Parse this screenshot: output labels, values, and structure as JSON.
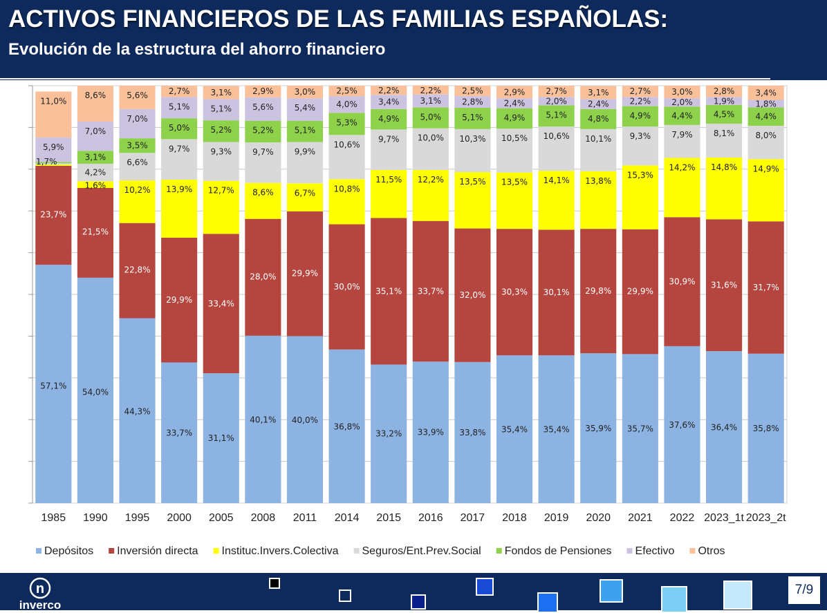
{
  "header": {
    "title": "ACTIVOS FINANCIEROS DE LAS FAMILIAS ESPAÑOLAS:",
    "subtitle": "Evolución de la estructura del ahorro financiero"
  },
  "footer": {
    "logo_text": "inverco",
    "page": "7/9"
  },
  "colors": {
    "header_bg": "#0e2a5c",
    "depositos": "#8db3e2",
    "inversion_directa": "#b5453f",
    "instituc": "#ffff00",
    "seguros": "#d9d9d9",
    "fondos": "#8ed14a",
    "efectivo": "#cbc3df",
    "otros": "#f9c09a"
  },
  "chart_data": {
    "type": "bar",
    "stacked": true,
    "normalized_percent": true,
    "title": "",
    "xlabel": "",
    "ylabel": "",
    "ylim": [
      0,
      100
    ],
    "grid": true,
    "legend_position": "bottom",
    "categories": [
      "1985",
      "1990",
      "1995",
      "2000",
      "2005",
      "2008",
      "2011",
      "2014",
      "2015",
      "2016",
      "2017",
      "2018",
      "2019",
      "2020",
      "2021",
      "2022",
      "2023_1t",
      "2023_2t"
    ],
    "series": [
      {
        "name": "Depósitos",
        "color": "#8db3e2",
        "label_color": "#222222",
        "values": [
          57.1,
          54.0,
          44.3,
          33.7,
          31.1,
          40.1,
          40.0,
          36.8,
          33.2,
          33.9,
          33.8,
          35.4,
          35.4,
          35.9,
          35.7,
          37.6,
          36.4,
          35.8
        ],
        "labels": [
          "57,1%",
          "54,0%",
          "44,3%",
          "33,7%",
          "31,1%",
          "40,1%",
          "40,0%",
          "36,8%",
          "33,2%",
          "33,9%",
          "33,8%",
          "35,4%",
          "35,4%",
          "35,9%",
          "35,7%",
          "37,6%",
          "36,4%",
          "35,8%"
        ]
      },
      {
        "name": "Inversión directa",
        "color": "#b5453f",
        "label_color": "#ffffff",
        "values": [
          23.7,
          21.5,
          22.8,
          29.9,
          33.4,
          28.0,
          29.9,
          30.0,
          35.1,
          33.7,
          32.0,
          30.3,
          30.1,
          29.8,
          29.9,
          30.9,
          31.6,
          31.7
        ],
        "labels": [
          "23,7%",
          "21,5%",
          "22,8%",
          "29,9%",
          "33,4%",
          "28,0%",
          "29,9%",
          "30,0%",
          "35,1%",
          "33,7%",
          "32,0%",
          "30,3%",
          "30,1%",
          "29,8%",
          "29,9%",
          "30,9%",
          "31,6%",
          "31,7%"
        ]
      },
      {
        "name": "Instituc.Invers.Colectiva",
        "color": "#ffff00",
        "label_color": "#222222",
        "values": [
          0.3,
          1.6,
          10.2,
          13.9,
          12.7,
          8.6,
          6.7,
          10.8,
          11.5,
          12.2,
          13.5,
          13.5,
          14.1,
          13.8,
          15.3,
          14.2,
          14.8,
          14.9
        ],
        "labels": [
          "",
          "1,6%",
          "10,2%",
          "13,9%",
          "12,7%",
          "8,6%",
          "6,7%",
          "10,8%",
          "11,5%",
          "12,2%",
          "13,5%",
          "13,5%",
          "14,1%",
          "13,8%",
          "15,3%",
          "14,2%",
          "14,8%",
          "14,9%"
        ]
      },
      {
        "name": "Seguros/Ent.Prev.Social",
        "color": "#d9d9d9",
        "label_color": "#222222",
        "values": [
          0.3,
          4.2,
          6.6,
          9.7,
          9.3,
          9.7,
          9.9,
          10.6,
          9.7,
          10.0,
          10.3,
          10.5,
          10.6,
          10.1,
          9.3,
          7.9,
          8.1,
          8.0
        ],
        "labels": [
          "",
          "4,2%",
          "6,6%",
          "9,7%",
          "9,3%",
          "9,7%",
          "9,9%",
          "10,6%",
          "9,7%",
          "10,0%",
          "10,3%",
          "10,5%",
          "10,6%",
          "10,1%",
          "9,3%",
          "7,9%",
          "8,1%",
          "8,0%"
        ]
      },
      {
        "name": "Fondos de Pensiones",
        "color": "#8ed14a",
        "label_color": "#222222",
        "values": [
          0.3,
          3.1,
          3.5,
          5.0,
          5.2,
          5.2,
          5.1,
          5.3,
          4.9,
          5.0,
          5.1,
          4.9,
          5.1,
          4.8,
          4.9,
          4.4,
          4.5,
          4.4
        ],
        "labels": [
          "",
          "3,1%",
          "3,5%",
          "5,0%",
          "5,2%",
          "5,2%",
          "5,1%",
          "5,3%",
          "4,9%",
          "5,0%",
          "5,1%",
          "4,9%",
          "5,1%",
          "4,8%",
          "4,9%",
          "4,4%",
          "4,5%",
          "4,4%"
        ]
      },
      {
        "name": "Efectivo",
        "color": "#cbc3df",
        "label_color": "#222222",
        "values": [
          5.9,
          7.0,
          7.0,
          5.1,
          5.1,
          5.6,
          5.4,
          4.0,
          3.4,
          3.1,
          2.8,
          2.4,
          2.0,
          2.4,
          2.2,
          2.0,
          1.9,
          1.8
        ],
        "labels": [
          "5,9%",
          "7,0%",
          "7,0%",
          "5,1%",
          "5,1%",
          "5,6%",
          "5,4%",
          "4,0%",
          "3,4%",
          "3,1%",
          "2,8%",
          "2,4%",
          "2,0%",
          "2,4%",
          "2,2%",
          "2,0%",
          "1,9%",
          "1,8%"
        ]
      },
      {
        "name": "Otros",
        "color": "#f9c09a",
        "label_color": "#222222",
        "values": [
          11.0,
          8.6,
          5.6,
          2.7,
          3.1,
          2.9,
          3.0,
          2.5,
          2.2,
          2.2,
          2.5,
          2.9,
          2.7,
          3.1,
          2.7,
          3.0,
          2.8,
          3.4
        ],
        "labels": [
          "11,0%",
          "8,6%",
          "5,6%",
          "2,7%",
          "3,1%",
          "2,9%",
          "3,0%",
          "2,5%",
          "2,2%",
          "2,2%",
          "2,5%",
          "2,9%",
          "2,7%",
          "3,1%",
          "2,7%",
          "3,0%",
          "2,8%",
          "3,4%"
        ]
      }
    ],
    "extra_annotations": [
      {
        "category": "1985",
        "text": "1,7%"
      }
    ]
  }
}
